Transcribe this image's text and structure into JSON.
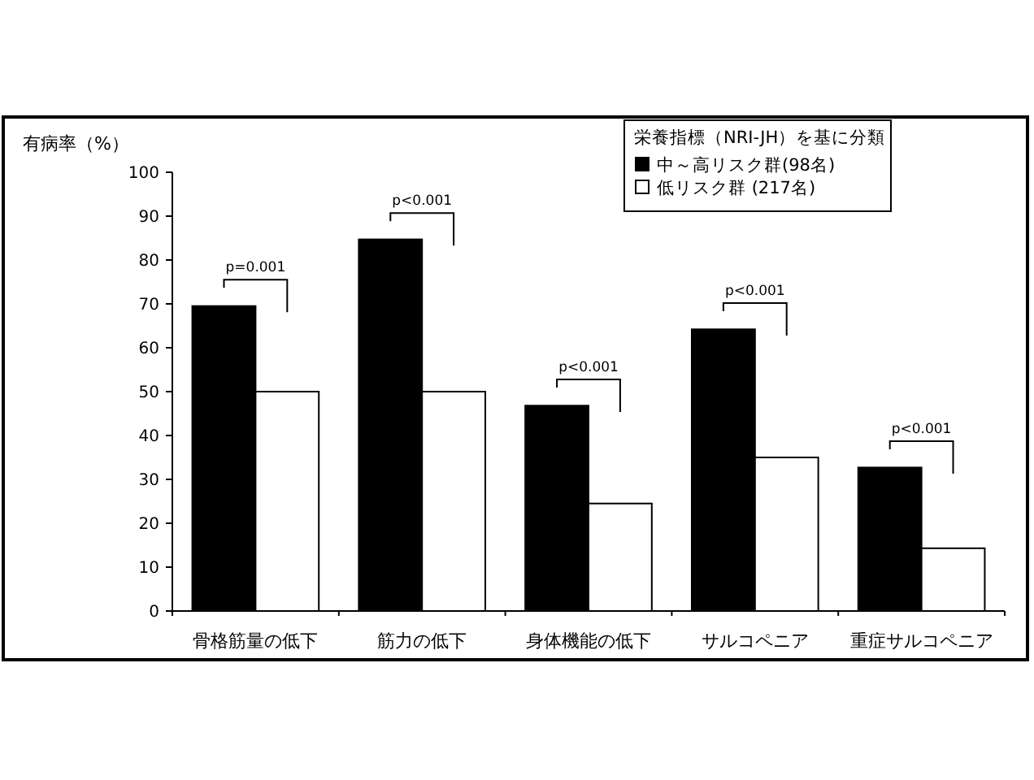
{
  "chart_data": {
    "type": "bar",
    "ylabel": "有病率（%）",
    "legend_title": "栄養指標（NRI-JH）を基に分類",
    "legend": "top",
    "categories": [
      "骨格筋量の低下",
      "筋力の低下",
      "身体機能の低下",
      "サルコペニア",
      "重症サルコペニア"
    ],
    "series": [
      {
        "name": "中～高リスク群(98名)",
        "color": "#000000",
        "values": [
          69.5,
          84.7,
          46.8,
          64.2,
          32.7
        ]
      },
      {
        "name": "低リスク群 (217名)",
        "color": "#ffffff",
        "values": [
          50,
          50,
          24.5,
          35,
          14.3
        ]
      }
    ],
    "ylim": [
      0,
      100
    ],
    "yticks": [
      0,
      10,
      20,
      30,
      40,
      50,
      60,
      70,
      80,
      90,
      100
    ],
    "annotations": [
      "p=0.001",
      "p<0.001",
      "p<0.001",
      "p<0.001",
      "p<0.001"
    ]
  }
}
